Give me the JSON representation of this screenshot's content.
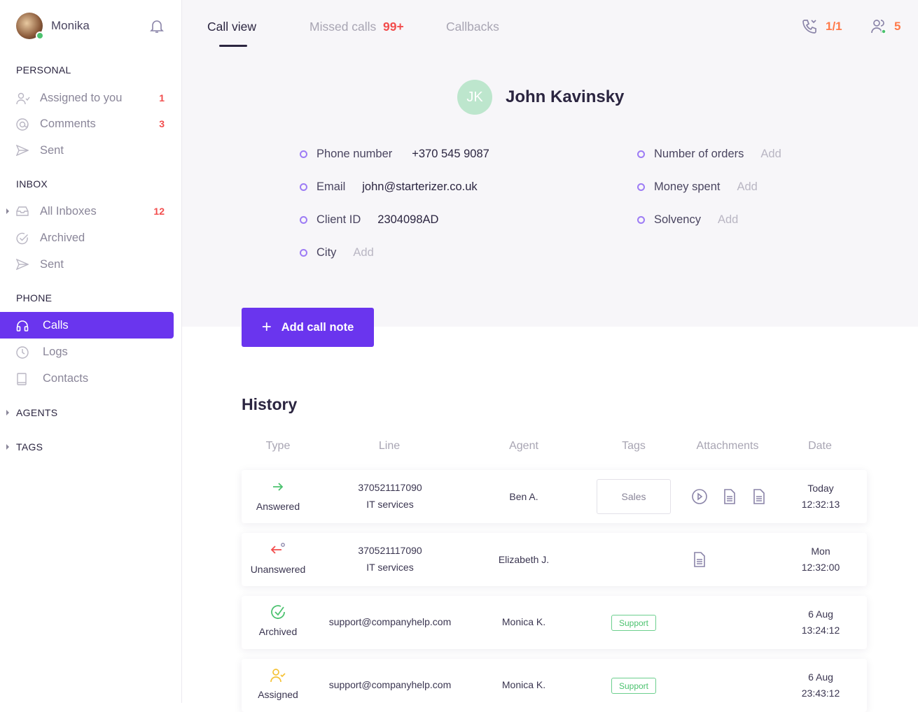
{
  "user": {
    "name": "Monika",
    "status_color": "#4cc26f"
  },
  "sidebar": {
    "personal": {
      "title": "PERSONAL",
      "items": [
        {
          "label": "Assigned to you",
          "count": "1"
        },
        {
          "label": "Comments",
          "count": "3"
        },
        {
          "label": "Sent"
        }
      ]
    },
    "inbox": {
      "title": "INBOX",
      "items": [
        {
          "label": "All Inboxes",
          "count": "12"
        },
        {
          "label": "Archived"
        },
        {
          "label": "Sent"
        }
      ]
    },
    "phone": {
      "title": "PHONE",
      "items": [
        {
          "label": "Calls",
          "active": true
        },
        {
          "label": "Logs"
        },
        {
          "label": "Contacts"
        }
      ]
    },
    "agents": "AGENTS",
    "tags": "TAGS"
  },
  "tabs": {
    "call_view": "Call view",
    "missed": "Missed calls",
    "missed_count": "99+",
    "callbacks": "Callbacks"
  },
  "header": {
    "calls": "1/1",
    "agents": "5"
  },
  "contact": {
    "initials": "JK",
    "name": "John Kavinsky",
    "fields": [
      {
        "label": "Phone number",
        "value": "+370 545 9087"
      },
      {
        "label": "Email",
        "value": "john@starterizer.co.uk"
      },
      {
        "label": "Client ID",
        "value": "2304098AD"
      },
      {
        "label": "City",
        "value": "Add"
      },
      {
        "label": "Number of orders",
        "value": "Add"
      },
      {
        "label": "Money spent",
        "value": "Add"
      },
      {
        "label": "Solvency",
        "value": "Add"
      }
    ]
  },
  "add_note": "Add call note",
  "history": {
    "title": "History",
    "columns": [
      "Type",
      "Line",
      "Agent",
      "Tags",
      "Attachments",
      "Date"
    ],
    "rows": [
      {
        "type": "Answered",
        "line1": "370521117090",
        "line2": "IT services",
        "agent": "Ben A.",
        "tag": "Sales",
        "date1": "Today",
        "date2": "12:32:13"
      },
      {
        "type": "Unanswered",
        "line1": "370521117090",
        "line2": "IT services",
        "agent": "Elizabeth J.",
        "tag": "",
        "date1": "Mon",
        "date2": "12:32:00"
      },
      {
        "type": "Archived",
        "line1": "support@companyhelp.com",
        "line2": "",
        "agent": "Monica K.",
        "tag": "Support",
        "date1": "6 Aug",
        "date2": "13:24:12"
      },
      {
        "type": "Assigned",
        "line1": "support@companyhelp.com",
        "line2": "",
        "agent": "Monica K.",
        "tag": "Support",
        "date1": "6 Aug",
        "date2": "23:43:12"
      }
    ]
  },
  "colors": {
    "accent": "#6a35ee",
    "badge": "#f24d4d",
    "counter": "#ff7a4a",
    "green": "#4cc26f"
  }
}
